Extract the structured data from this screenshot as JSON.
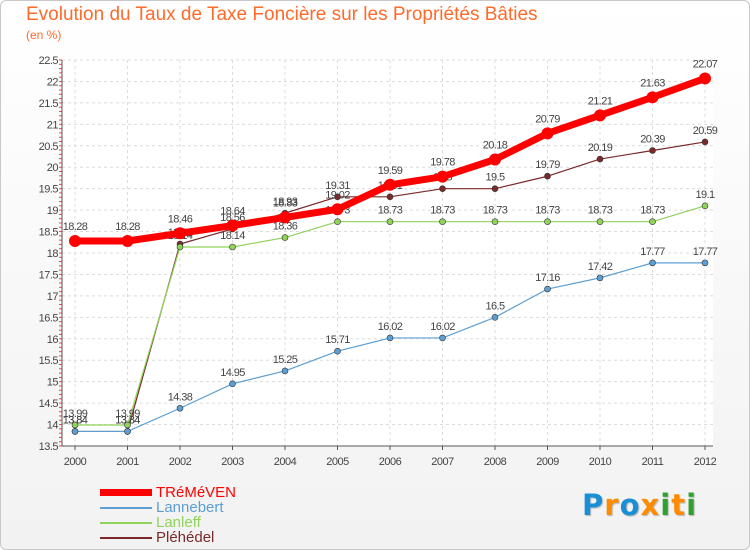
{
  "title": "Evolution du Taux de Taxe Foncière sur les Propriétés Bâties",
  "subtitle": "(en %)",
  "logo": {
    "text": "Proxiti",
    "colors": [
      "#1a8fd6",
      "#ff8c00",
      "#1a8fd6",
      "#ff8c00",
      "#30a030",
      "#ff8c00",
      "#30a030"
    ]
  },
  "chart_data": {
    "type": "line",
    "title": "Evolution du Taux de Taxe Foncière sur les Propriétés Bâties",
    "ylabel": "(en %)",
    "xlabel": "",
    "ylim": [
      13.5,
      22.5
    ],
    "ytick_step": 0.5,
    "yticks": [
      "13.5",
      "14",
      "14.5",
      "15",
      "15.5",
      "16",
      "16.5",
      "17",
      "17.5",
      "18",
      "18.5",
      "19",
      "19.5",
      "20",
      "20.5",
      "21",
      "21.5",
      "22",
      "22.5"
    ],
    "categories": [
      "2000",
      "2001",
      "2002",
      "2003",
      "2004",
      "2005",
      "2006",
      "2007",
      "2008",
      "2009",
      "2010",
      "2011",
      "2012"
    ],
    "grid": true,
    "legend_position": "bottom-left",
    "series": [
      {
        "name": "Pléhédel",
        "color": "#7a2a2a",
        "values": [
          13.84,
          13.84,
          18.21,
          18.56,
          18.93,
          19.31,
          19.31,
          19.5,
          19.5,
          19.79,
          20.19,
          20.39,
          20.59
        ],
        "labels": [
          "13.84",
          "13.84",
          "18.21",
          "18.56",
          "18.93",
          "19.31",
          "19.31",
          "19.5",
          "19.5",
          "19.79",
          "20.19",
          "20.39",
          "20.59"
        ]
      },
      {
        "name": "Lannebert",
        "color": "#5d9fd3",
        "values": [
          13.84,
          13.84,
          14.38,
          14.95,
          15.25,
          15.71,
          16.02,
          16.02,
          16.5,
          17.16,
          17.42,
          17.77,
          17.77
        ],
        "labels": [
          "13.84",
          "13.84",
          "14.38",
          "14.95",
          "15.25",
          "15.71",
          "16.02",
          "16.02",
          "16.5",
          "17.16",
          "17.42",
          "17.77",
          "17.77"
        ]
      },
      {
        "name": "Lanleff",
        "color": "#8fd35a",
        "values": [
          13.99,
          13.99,
          18.14,
          18.14,
          18.36,
          18.73,
          18.73,
          18.73,
          18.73,
          18.73,
          18.73,
          18.73,
          19.1
        ],
        "labels": [
          "13.99",
          "13.99",
          "18.14",
          "18.14",
          "18.36",
          "18.73",
          "18.73",
          "18.73",
          "18.73",
          "18.73",
          "18.73",
          "18.73",
          "19.1"
        ]
      },
      {
        "name": "TRéMéVEN",
        "color": "#ff0000",
        "values": [
          18.28,
          18.28,
          18.46,
          18.64,
          18.83,
          19.02,
          19.59,
          19.78,
          20.18,
          20.79,
          21.21,
          21.63,
          22.07
        ],
        "labels": [
          "18.28",
          "18.28",
          "18.46",
          "18.64",
          "18.83",
          "19.02",
          "19.59",
          "19.78",
          "20.18",
          "20.79",
          "21.21",
          "21.63",
          "22.07"
        ]
      }
    ],
    "legend": [
      {
        "name": "TRéMéVEN",
        "color": "#ff0000"
      },
      {
        "name": "Lannebert",
        "color": "#5d9fd3"
      },
      {
        "name": "Lanleff",
        "color": "#8fd35a"
      },
      {
        "name": "Pléhédel",
        "color": "#7a2a2a"
      }
    ]
  }
}
